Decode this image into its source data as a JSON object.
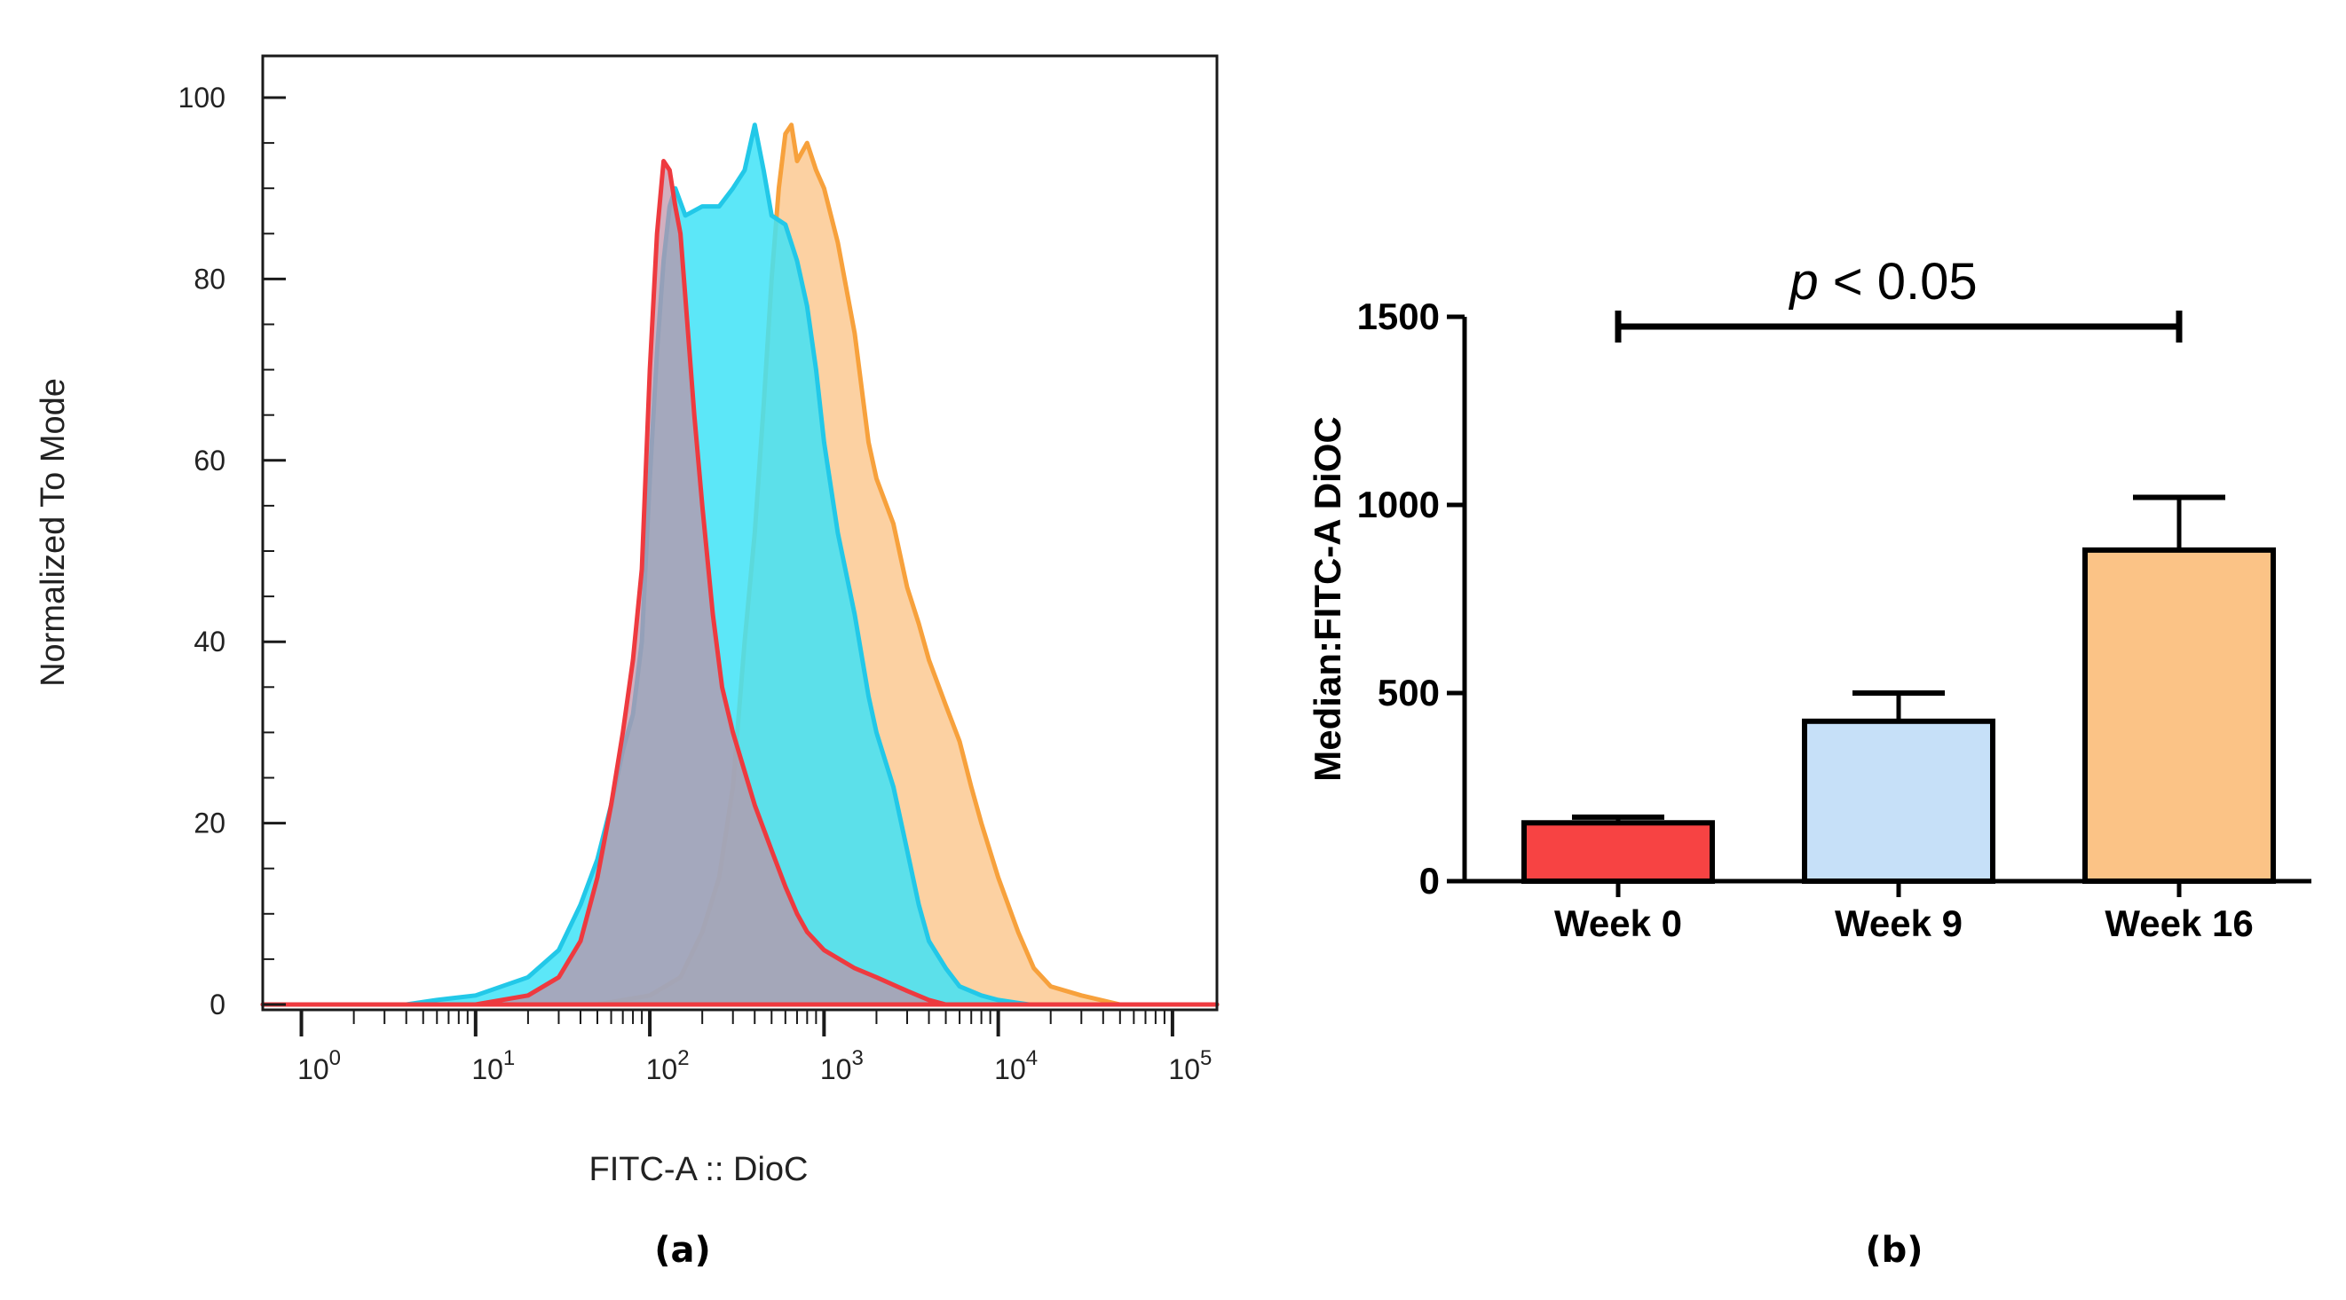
{
  "chart_data": [
    {
      "type": "area",
      "panel_label": "(a)",
      "xlabel": "FITC-A :: DioC",
      "ylabel": "Normalized To Mode",
      "xscale": "log",
      "xlim": [
        0.6,
        180000
      ],
      "ylim": [
        0,
        100
      ],
      "yticks": [
        "0",
        "20",
        "40",
        "60",
        "80",
        "100"
      ],
      "xticks": [
        {
          "base": "10",
          "exp": "0",
          "value": 1
        },
        {
          "base": "10",
          "exp": "1",
          "value": 10
        },
        {
          "base": "10",
          "exp": "2",
          "value": 100
        },
        {
          "base": "10",
          "exp": "3",
          "value": 1000
        },
        {
          "base": "10",
          "exp": "4",
          "value": 10000
        },
        {
          "base": "10",
          "exp": "5",
          "value": 100000
        }
      ],
      "series": [
        {
          "name": "orange",
          "color": "#f7a13c",
          "fill": "#fbc992",
          "points": [
            [
              0.6,
              0
            ],
            [
              10,
              0
            ],
            [
              50,
              0
            ],
            [
              100,
              1
            ],
            [
              150,
              3
            ],
            [
              200,
              8
            ],
            [
              250,
              14
            ],
            [
              300,
              24
            ],
            [
              350,
              40
            ],
            [
              400,
              52
            ],
            [
              450,
              66
            ],
            [
              500,
              80
            ],
            [
              550,
              90
            ],
            [
              600,
              96
            ],
            [
              650,
              97
            ],
            [
              700,
              93
            ],
            [
              800,
              95
            ],
            [
              900,
              92
            ],
            [
              1000,
              90
            ],
            [
              1200,
              84
            ],
            [
              1500,
              74
            ],
            [
              1800,
              62
            ],
            [
              2000,
              58
            ],
            [
              2500,
              53
            ],
            [
              3000,
              46
            ],
            [
              3500,
              42
            ],
            [
              4000,
              38
            ],
            [
              5000,
              33
            ],
            [
              6000,
              29
            ],
            [
              7000,
              24
            ],
            [
              8000,
              20
            ],
            [
              10000,
              14
            ],
            [
              13000,
              8
            ],
            [
              16000,
              4
            ],
            [
              20000,
              2
            ],
            [
              30000,
              1
            ],
            [
              50000,
              0
            ],
            [
              180000,
              0
            ]
          ]
        },
        {
          "name": "cyan",
          "color": "#22c8e8",
          "fill": "#3fe3f7",
          "points": [
            [
              0.6,
              0
            ],
            [
              4,
              0
            ],
            [
              6,
              0.5
            ],
            [
              10,
              1
            ],
            [
              20,
              3
            ],
            [
              30,
              6
            ],
            [
              40,
              11
            ],
            [
              50,
              16
            ],
            [
              60,
              22
            ],
            [
              70,
              28
            ],
            [
              80,
              32
            ],
            [
              90,
              40
            ],
            [
              100,
              58
            ],
            [
              110,
              72
            ],
            [
              120,
              82
            ],
            [
              130,
              88
            ],
            [
              140,
              90
            ],
            [
              160,
              87
            ],
            [
              200,
              88
            ],
            [
              250,
              88
            ],
            [
              300,
              90
            ],
            [
              350,
              92
            ],
            [
              400,
              97
            ],
            [
              450,
              92
            ],
            [
              500,
              87
            ],
            [
              600,
              86
            ],
            [
              700,
              82
            ],
            [
              800,
              77
            ],
            [
              900,
              70
            ],
            [
              1000,
              62
            ],
            [
              1200,
              52
            ],
            [
              1500,
              43
            ],
            [
              1800,
              34
            ],
            [
              2000,
              30
            ],
            [
              2500,
              24
            ],
            [
              3000,
              17
            ],
            [
              3500,
              11
            ],
            [
              4000,
              7
            ],
            [
              5000,
              4
            ],
            [
              6000,
              2
            ],
            [
              8000,
              1
            ],
            [
              10000,
              0.5
            ],
            [
              15000,
              0
            ],
            [
              180000,
              0
            ]
          ]
        },
        {
          "name": "red",
          "color": "#ee3a3f",
          "fill": "#c090a6",
          "points": [
            [
              0.6,
              0
            ],
            [
              10,
              0
            ],
            [
              20,
              1
            ],
            [
              30,
              3
            ],
            [
              40,
              7
            ],
            [
              50,
              14
            ],
            [
              60,
              22
            ],
            [
              70,
              30
            ],
            [
              80,
              38
            ],
            [
              90,
              48
            ],
            [
              100,
              70
            ],
            [
              110,
              85
            ],
            [
              120,
              93
            ],
            [
              130,
              92
            ],
            [
              140,
              88
            ],
            [
              150,
              85
            ],
            [
              160,
              78
            ],
            [
              180,
              65
            ],
            [
              200,
              55
            ],
            [
              230,
              43
            ],
            [
              260,
              35
            ],
            [
              300,
              30
            ],
            [
              400,
              22
            ],
            [
              500,
              17
            ],
            [
              600,
              13
            ],
            [
              700,
              10
            ],
            [
              800,
              8
            ],
            [
              1000,
              6
            ],
            [
              1500,
              4
            ],
            [
              2000,
              3
            ],
            [
              3000,
              1.5
            ],
            [
              4000,
              0.5
            ],
            [
              5000,
              0
            ],
            [
              180000,
              0
            ]
          ]
        }
      ]
    },
    {
      "type": "bar",
      "panel_label": "(b)",
      "ylabel": "Median:FITC-A DiOC",
      "ylim": [
        0,
        1500
      ],
      "yticks": [
        "0",
        "500",
        "1000",
        "1500"
      ],
      "categories": [
        "Week 0",
        "Week 9",
        "Week 16"
      ],
      "values": [
        155,
        425,
        880
      ],
      "errors": [
        15,
        75,
        140
      ],
      "colors": [
        "#f74343",
        "#c6e0f8",
        "#fbc386"
      ],
      "annotation": {
        "italic": "p",
        "text": " < 0.05",
        "from": 0,
        "to": 2
      }
    }
  ]
}
